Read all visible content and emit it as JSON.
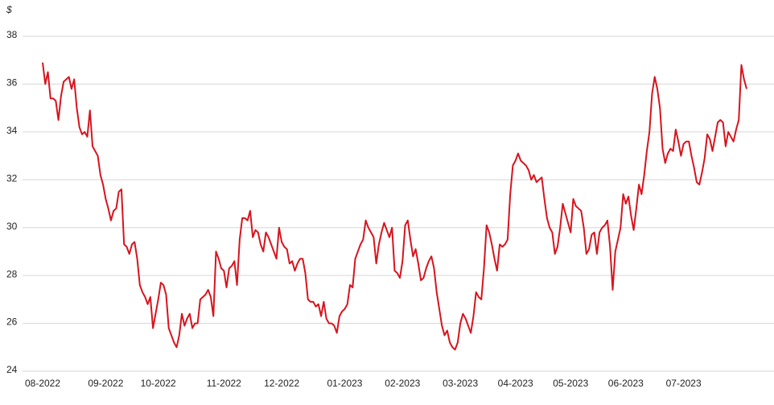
{
  "chart_data": {
    "type": "line",
    "y_label": "$",
    "categories": [
      "08-2022",
      null,
      null,
      null,
      null,
      null,
      null,
      null,
      null,
      null,
      null,
      null,
      null,
      null,
      null,
      null,
      null,
      null,
      null,
      null,
      null,
      null,
      null,
      null,
      "09-2022",
      null,
      null,
      null,
      null,
      null,
      null,
      null,
      null,
      null,
      null,
      null,
      null,
      null,
      null,
      null,
      null,
      null,
      null,
      null,
      "10-2022",
      null,
      null,
      null,
      null,
      null,
      null,
      null,
      null,
      null,
      null,
      null,
      null,
      null,
      null,
      null,
      null,
      null,
      null,
      null,
      null,
      null,
      null,
      null,
      null,
      "11-2022",
      null,
      null,
      null,
      null,
      null,
      null,
      null,
      null,
      null,
      null,
      null,
      null,
      null,
      null,
      null,
      null,
      null,
      null,
      null,
      null,
      null,
      "12-2022",
      null,
      null,
      null,
      null,
      null,
      null,
      null,
      null,
      null,
      null,
      null,
      null,
      null,
      null,
      null,
      null,
      null,
      null,
      null,
      null,
      null,
      null,
      null,
      "01-2023",
      null,
      null,
      null,
      null,
      null,
      null,
      null,
      null,
      null,
      null,
      null,
      null,
      null,
      null,
      null,
      null,
      null,
      null,
      null,
      null,
      null,
      "02-2023",
      null,
      null,
      null,
      null,
      null,
      null,
      null,
      null,
      null,
      null,
      null,
      null,
      null,
      null,
      null,
      null,
      null,
      null,
      null,
      null,
      null,
      "03-2023",
      null,
      null,
      null,
      null,
      null,
      null,
      null,
      null,
      null,
      null,
      null,
      null,
      null,
      null,
      null,
      null,
      null,
      null,
      null,
      null,
      "04-2023",
      null,
      null,
      null,
      null,
      null,
      null,
      null,
      null,
      null,
      null,
      null,
      null,
      null,
      null,
      null,
      null,
      null,
      null,
      null,
      null,
      "05-2023",
      null,
      null,
      null,
      null,
      null,
      null,
      null,
      null,
      null,
      null,
      null,
      null,
      null,
      null,
      null,
      null,
      null,
      null,
      null,
      null,
      "06-2023",
      null,
      null,
      null,
      null,
      null,
      null,
      null,
      null,
      null,
      null,
      null,
      null,
      null,
      null,
      null,
      null,
      null,
      null,
      null,
      null,
      null,
      "07-2023",
      null,
      null,
      null,
      null,
      null,
      null,
      null,
      null,
      null,
      null,
      null,
      null,
      null,
      null,
      null,
      null,
      null,
      null,
      null,
      null,
      null,
      null,
      null,
      null
    ],
    "values": [
      36.9,
      36.0,
      36.5,
      35.4,
      35.4,
      35.3,
      34.5,
      35.5,
      36.1,
      36.2,
      36.3,
      35.8,
      36.2,
      35.0,
      34.2,
      33.9,
      34.0,
      33.8,
      34.9,
      33.4,
      33.2,
      33.0,
      32.2,
      31.8,
      31.2,
      30.8,
      30.3,
      30.7,
      30.8,
      31.5,
      31.6,
      29.3,
      29.2,
      28.9,
      29.3,
      29.4,
      28.7,
      27.6,
      27.3,
      27.1,
      26.8,
      27.1,
      25.8,
      26.4,
      27.0,
      27.7,
      27.6,
      27.2,
      25.8,
      25.5,
      25.2,
      25.0,
      25.5,
      26.4,
      25.9,
      26.2,
      26.4,
      25.8,
      26.0,
      26.0,
      27.0,
      27.1,
      27.2,
      27.4,
      27.1,
      26.3,
      29.0,
      28.7,
      28.3,
      28.2,
      27.5,
      28.3,
      28.4,
      28.6,
      27.6,
      29.5,
      30.4,
      30.4,
      30.3,
      30.7,
      29.6,
      29.9,
      29.8,
      29.3,
      29.0,
      29.8,
      29.6,
      29.3,
      29.0,
      28.7,
      30.0,
      29.4,
      29.2,
      29.1,
      28.5,
      28.6,
      28.2,
      28.5,
      28.7,
      28.7,
      28.1,
      27.0,
      26.9,
      26.9,
      26.7,
      26.8,
      26.3,
      26.9,
      26.2,
      26.0,
      26.0,
      25.9,
      25.6,
      26.3,
      26.5,
      26.6,
      26.8,
      27.6,
      27.5,
      28.7,
      29.0,
      29.3,
      29.5,
      30.3,
      30.0,
      29.8,
      29.6,
      28.5,
      29.3,
      29.8,
      30.2,
      29.9,
      29.6,
      30.0,
      28.2,
      28.1,
      27.9,
      28.6,
      30.1,
      30.3,
      29.5,
      28.8,
      29.1,
      28.5,
      27.8,
      27.9,
      28.3,
      28.6,
      28.8,
      28.3,
      27.3,
      26.6,
      25.9,
      25.5,
      25.7,
      25.2,
      25.0,
      24.9,
      25.2,
      26.0,
      26.4,
      26.2,
      25.9,
      25.6,
      26.3,
      27.3,
      27.1,
      27.0,
      28.3,
      30.1,
      29.8,
      29.3,
      28.7,
      28.2,
      29.3,
      29.2,
      29.3,
      29.5,
      31.4,
      32.6,
      32.8,
      33.1,
      32.8,
      32.7,
      32.6,
      32.4,
      32.0,
      32.2,
      31.9,
      32.0,
      32.1,
      31.2,
      30.4,
      30.0,
      29.8,
      28.9,
      29.2,
      30.0,
      31.0,
      30.6,
      30.2,
      29.8,
      31.2,
      30.9,
      30.8,
      30.7,
      30.0,
      28.9,
      29.1,
      29.7,
      29.8,
      28.9,
      29.8,
      30.0,
      30.1,
      30.3,
      29.2,
      27.4,
      29.0,
      29.5,
      30.0,
      31.4,
      31.0,
      31.3,
      30.5,
      29.9,
      30.8,
      31.8,
      31.4,
      32.2,
      33.2,
      34.0,
      35.6,
      36.3,
      35.8,
      35.0,
      33.3,
      32.7,
      33.1,
      33.3,
      33.2,
      34.1,
      33.6,
      33.0,
      33.5,
      33.6,
      33.6,
      33.0,
      32.5,
      31.9,
      31.8,
      32.3,
      32.9,
      33.9,
      33.7,
      33.2,
      33.8,
      34.4,
      34.5,
      34.4,
      33.4,
      34.0,
      33.8,
      33.6,
      34.1,
      34.5,
      36.8,
      36.2,
      35.8
    ],
    "color": "#d7141e",
    "ylim": [
      24,
      38
    ],
    "yticks": [
      24,
      26,
      28,
      30,
      32,
      34,
      36,
      38
    ],
    "grid": true
  }
}
